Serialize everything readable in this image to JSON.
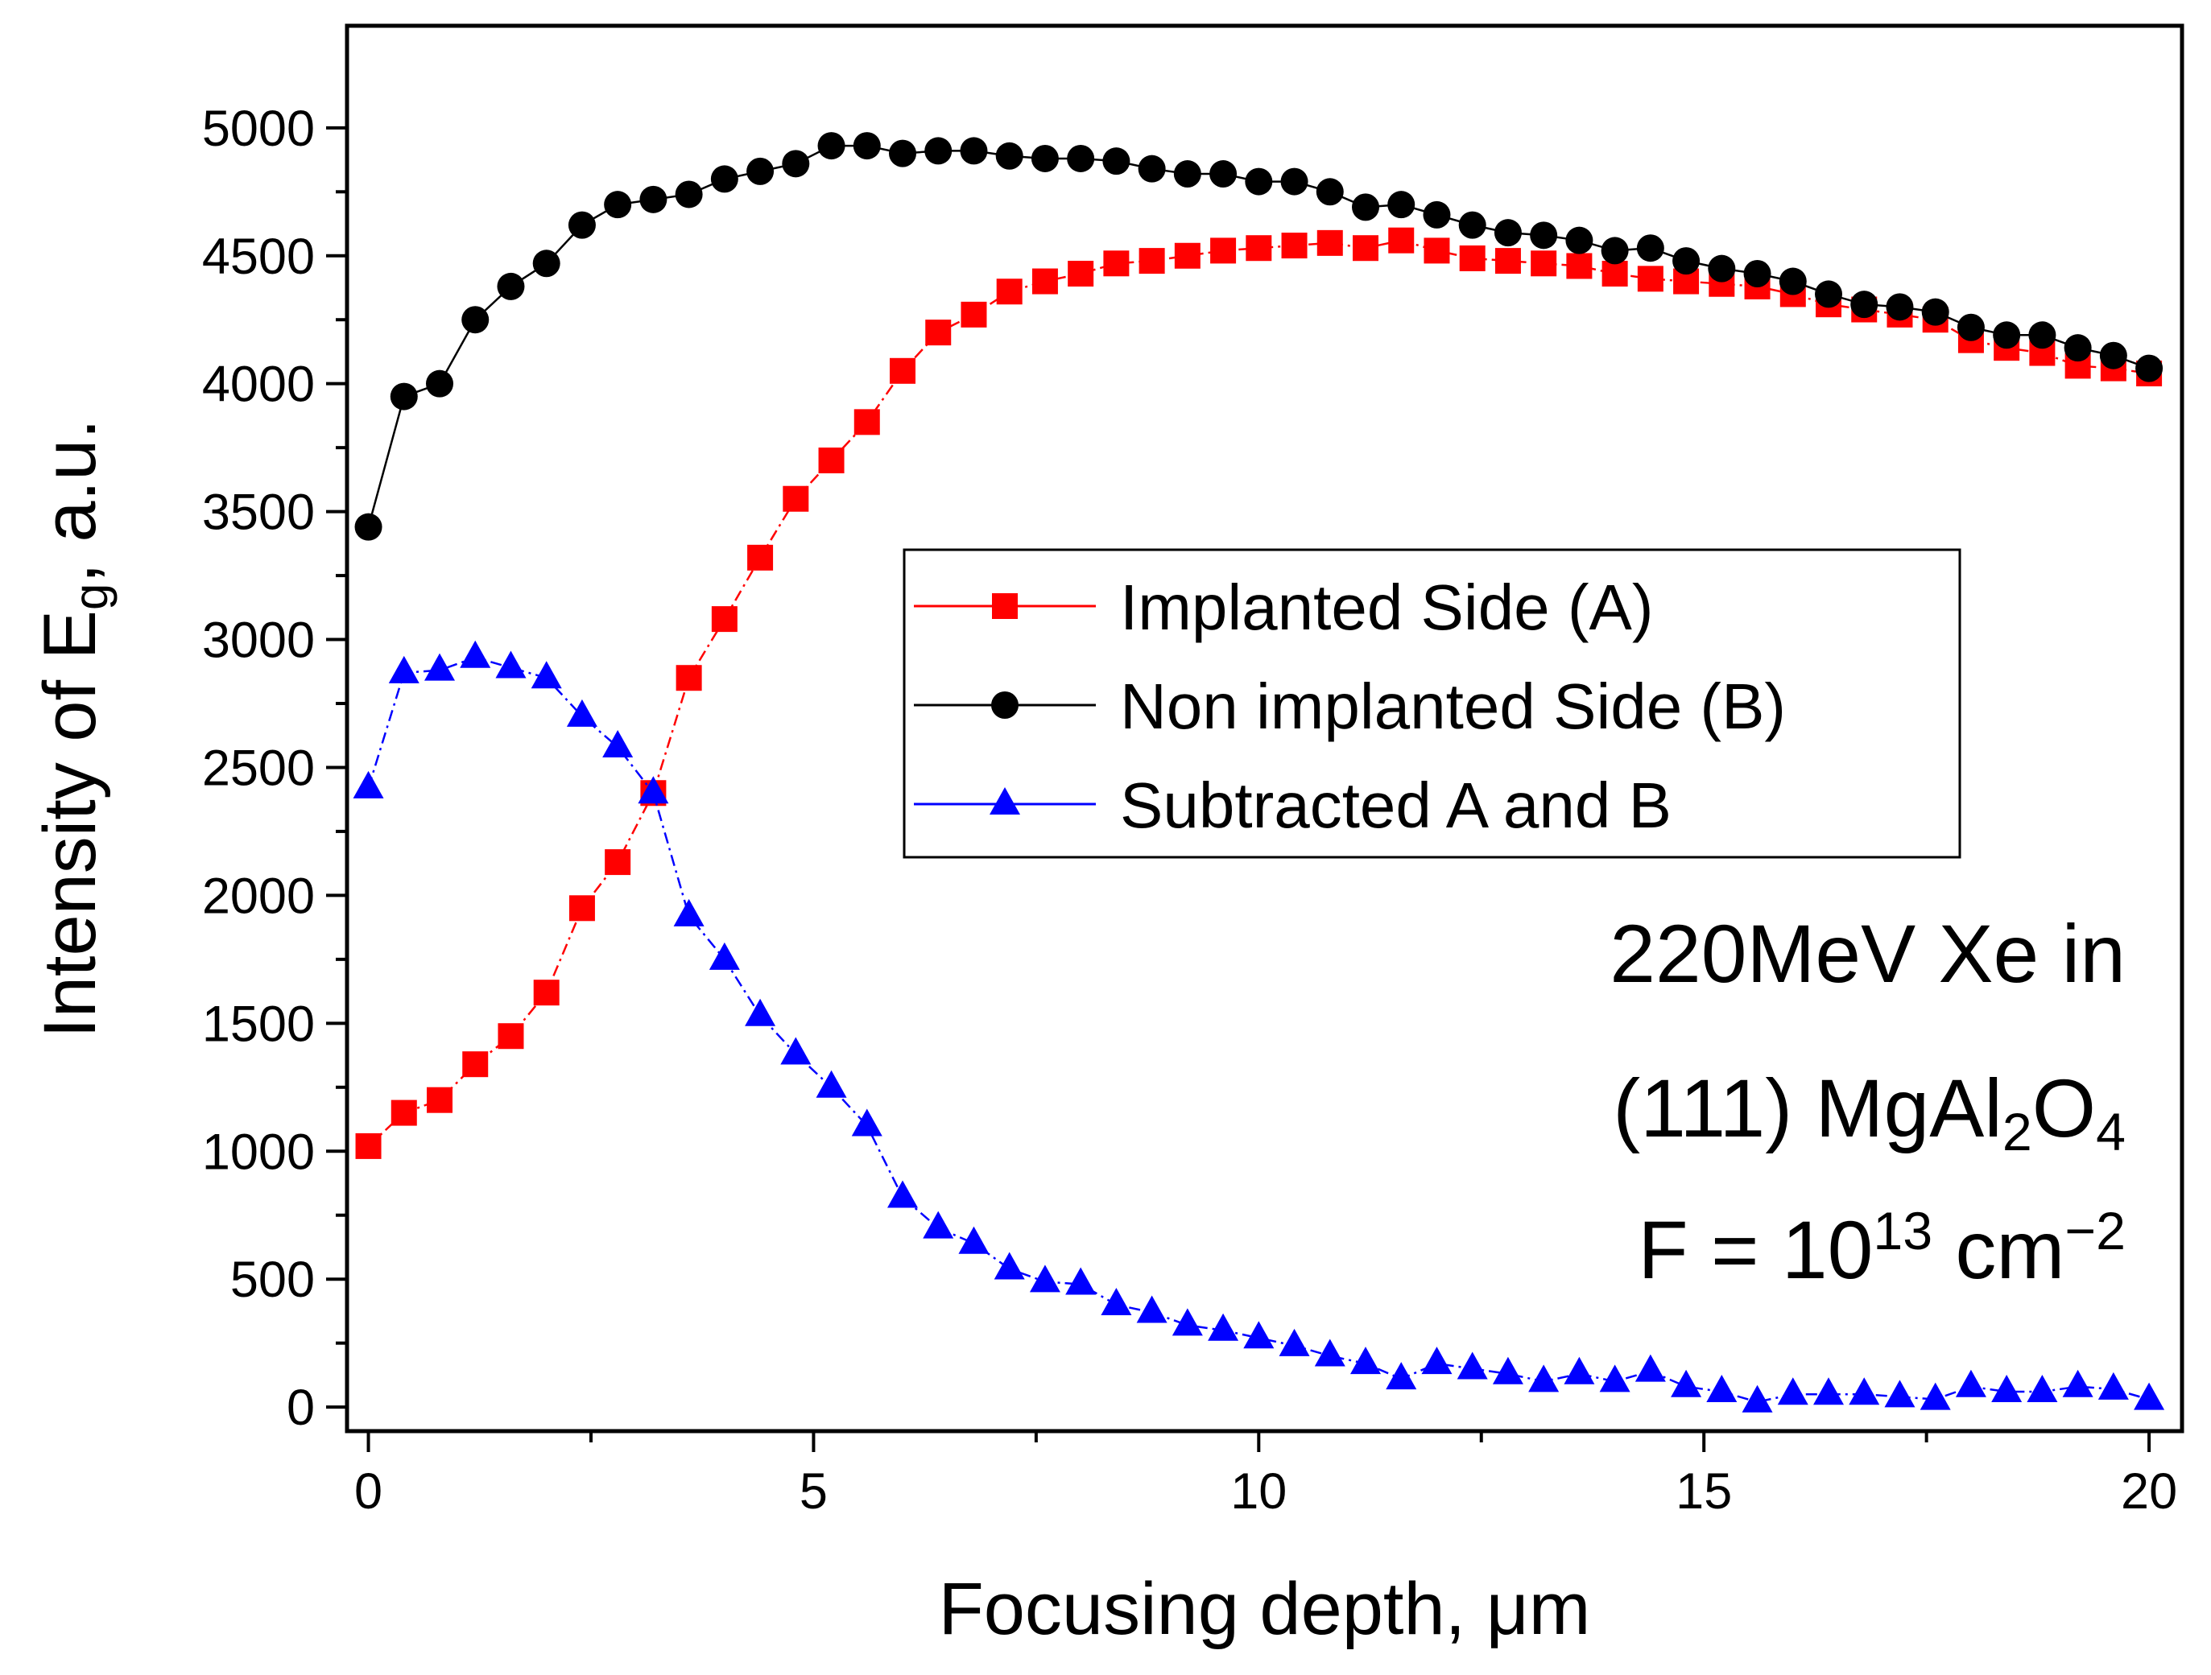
{
  "chart_data": {
    "type": "line",
    "xlabel": "Focusing depth, μm",
    "ylabel": [
      {
        "text": "Intensity of E"
      },
      {
        "text": "g",
        "sub": true
      },
      {
        "text": ", a.u."
      }
    ],
    "annotation": [
      [
        {
          "text": "220MeV Xe in"
        }
      ],
      [
        {
          "text": "(111) MgAl"
        },
        {
          "text": "2",
          "sub": true
        },
        {
          "text": "O"
        },
        {
          "text": "4",
          "sub": true
        }
      ],
      [
        {
          "text": "F = 10"
        },
        {
          "text": "13",
          "sup": true
        },
        {
          "text": " cm"
        },
        {
          "text": "−2",
          "sup": true
        }
      ]
    ],
    "legend": "upper right",
    "xlim": [
      -0.24,
      20.37
    ],
    "ylim": [
      -94,
      5399
    ],
    "xticks": [
      0,
      5,
      10,
      15,
      20
    ],
    "yticks": [
      0,
      500,
      1000,
      1500,
      2000,
      2500,
      3000,
      3500,
      4000,
      4500,
      5000
    ],
    "x": [
      0,
      0.4,
      0.8,
      1.2,
      1.6,
      2.0,
      2.4,
      2.8,
      3.2,
      3.6,
      4.0,
      4.4,
      4.8,
      5.2,
      5.6,
      6.0,
      6.4,
      6.8,
      7.2,
      7.6,
      8.0,
      8.4,
      8.8,
      9.2,
      9.6,
      10.0,
      10.4,
      10.8,
      11.2,
      11.6,
      12.0,
      12.4,
      12.8,
      13.2,
      13.6,
      14.0,
      14.4,
      14.8,
      15.2,
      15.6,
      16.0,
      16.4,
      16.8,
      17.2,
      17.6,
      18.0,
      18.4,
      18.8,
      19.2,
      19.6,
      20.0
    ],
    "series": [
      {
        "name": "Implanted Side (A)",
        "color": "#ff0000",
        "marker": "square",
        "dash": "dashdot",
        "values": [
          1020,
          1150,
          1200,
          1340,
          1450,
          1620,
          1950,
          2130,
          2400,
          2850,
          3080,
          3320,
          3550,
          3700,
          3850,
          4050,
          4200,
          4270,
          4360,
          4400,
          4430,
          4470,
          4480,
          4500,
          4520,
          4530,
          4540,
          4550,
          4530,
          4560,
          4520,
          4490,
          4480,
          4470,
          4460,
          4430,
          4410,
          4400,
          4390,
          4380,
          4350,
          4310,
          4290,
          4270,
          4250,
          4170,
          4140,
          4120,
          4070,
          4060,
          4040
        ]
      },
      {
        "name": "Non implanted Side (B)",
        "color": "#000000",
        "marker": "circle",
        "dash": "solid",
        "values": [
          3440,
          3950,
          4000,
          4250,
          4380,
          4470,
          4620,
          4700,
          4720,
          4740,
          4800,
          4830,
          4860,
          4930,
          4930,
          4900,
          4910,
          4910,
          4890,
          4880,
          4880,
          4870,
          4840,
          4820,
          4820,
          4790,
          4790,
          4750,
          4690,
          4700,
          4660,
          4620,
          4590,
          4580,
          4560,
          4520,
          4530,
          4480,
          4450,
          4430,
          4400,
          4350,
          4310,
          4300,
          4280,
          4220,
          4190,
          4190,
          4140,
          4110,
          4060
        ]
      },
      {
        "name": "Subtracted A and B",
        "color": "#0000ff",
        "marker": "triangle",
        "dash": "dashdot",
        "values": [
          2420,
          2870,
          2880,
          2930,
          2890,
          2850,
          2700,
          2580,
          2400,
          1920,
          1750,
          1530,
          1380,
          1250,
          1100,
          820,
          700,
          640,
          540,
          490,
          480,
          400,
          370,
          320,
          300,
          270,
          240,
          200,
          170,
          110,
          170,
          150,
          130,
          100,
          130,
          100,
          140,
          80,
          60,
          20,
          50,
          50,
          50,
          40,
          30,
          80,
          60,
          60,
          80,
          70,
          30
        ]
      }
    ]
  }
}
